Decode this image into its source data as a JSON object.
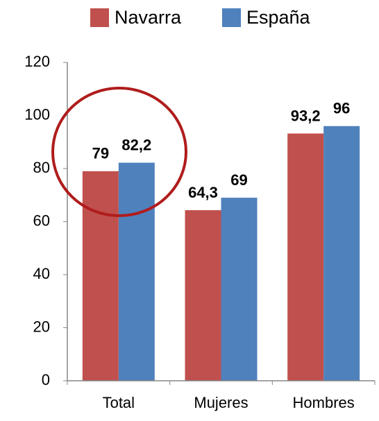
{
  "chart_data": {
    "type": "bar",
    "categories": [
      "Total",
      "Mujeres",
      "Hombres"
    ],
    "series": [
      {
        "name": "Navarra",
        "color": "#c0504d",
        "values": [
          79,
          64.3,
          93.2
        ],
        "value_labels": [
          "79",
          "64,3",
          "93,2"
        ]
      },
      {
        "name": "España",
        "color": "#4f81bd",
        "values": [
          82.2,
          69,
          96
        ],
        "value_labels": [
          "82,2",
          "69",
          "96"
        ]
      }
    ],
    "ylim": [
      0,
      120
    ],
    "yticks": [
      0,
      20,
      40,
      60,
      80,
      100,
      120
    ],
    "grid": false,
    "legend": "top"
  }
}
